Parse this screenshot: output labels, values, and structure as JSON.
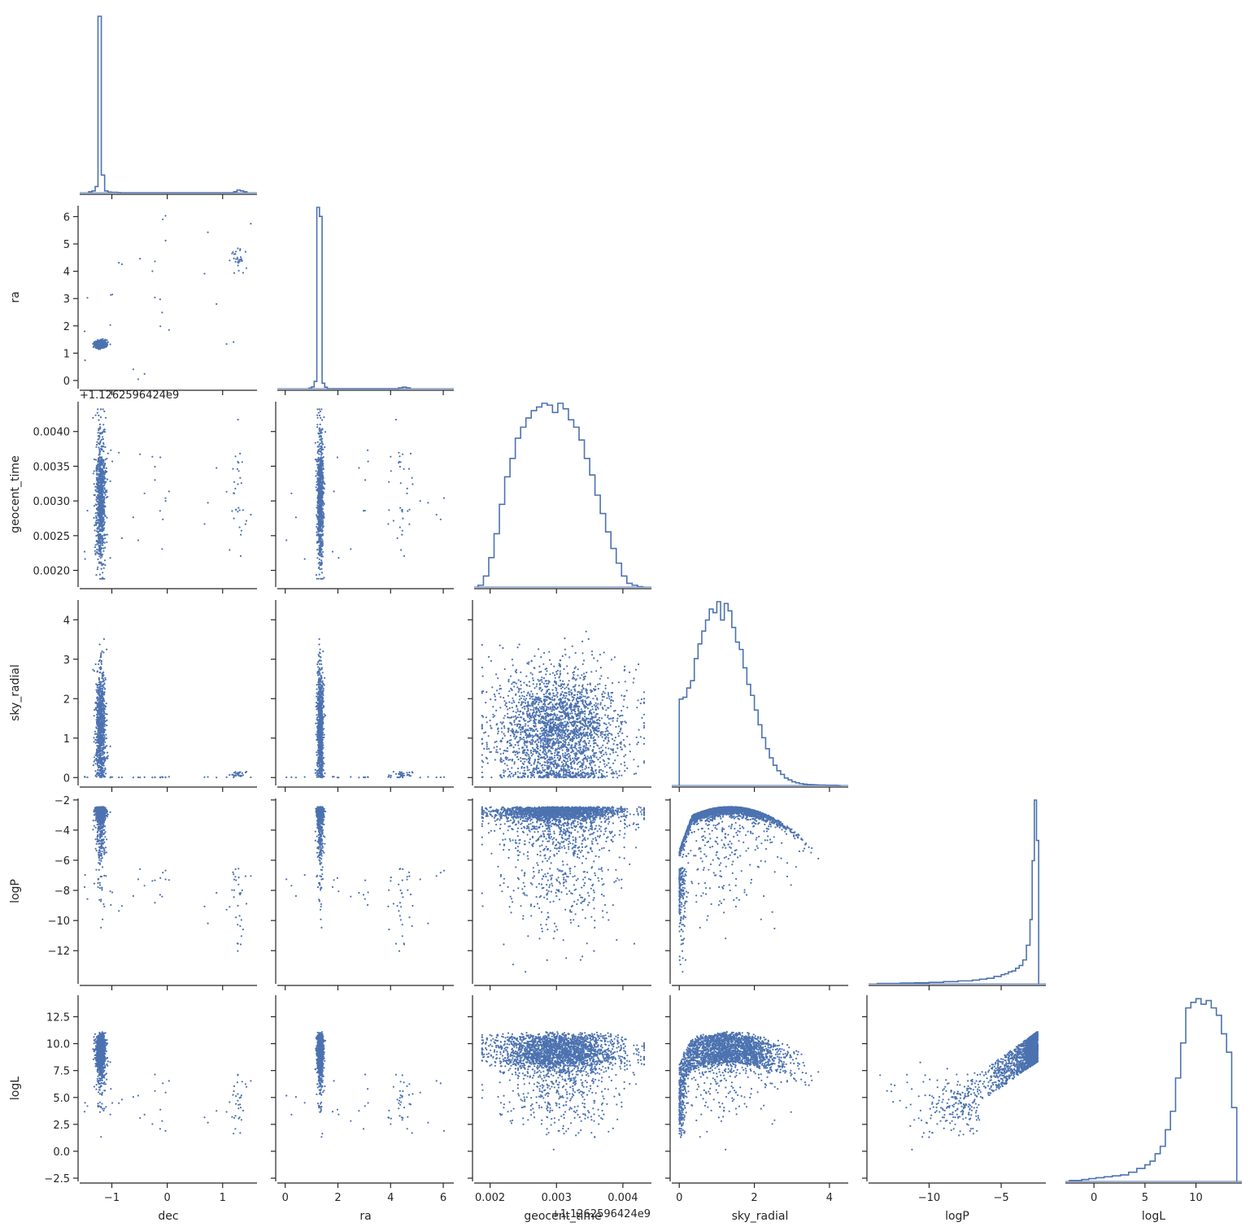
{
  "colors": {
    "series": "#4c72b0",
    "axis": "#262626",
    "background": "#ffffff"
  },
  "chart_data": {
    "type": "scatter",
    "layout": "corner-plot",
    "grid": false,
    "variables": [
      "dec",
      "ra",
      "geocent_time",
      "sky_radial",
      "logP",
      "logL"
    ],
    "offset_label": "+1.1262596424e9",
    "axes": {
      "dec": {
        "label": "dec",
        "lim": [
          -1.58,
          1.62
        ],
        "ticks": [
          -1,
          0,
          1
        ],
        "tick_labels": [
          "−1",
          "0",
          "1"
        ]
      },
      "ra": {
        "label": "ra",
        "lim": [
          -0.3,
          6.4
        ],
        "ticks": [
          0,
          1,
          2,
          3,
          4,
          5,
          6
        ],
        "tick_labels_y": [
          "0",
          "1",
          "2",
          "3",
          "4",
          "5",
          "6"
        ],
        "ticks_x": [
          0,
          2,
          4,
          6
        ],
        "tick_labels_x": [
          "0",
          "2",
          "4",
          "6"
        ]
      },
      "geocent_time": {
        "label": "geocent_time",
        "lim": [
          0.00176,
          0.00443
        ],
        "ticks": [
          0.002,
          0.0025,
          0.003,
          0.0035,
          0.004
        ],
        "tick_labels_y": [
          "0.0020",
          "0.0025",
          "0.0030",
          "0.0035",
          "0.0040"
        ],
        "ticks_x": [
          0.002,
          0.003,
          0.004
        ],
        "tick_labels_x": [
          "0.002",
          "0.003",
          "0.004"
        ]
      },
      "sky_radial": {
        "label": "sky_radial",
        "lim": [
          -0.2,
          4.5
        ],
        "ticks": [
          0,
          1,
          2,
          3,
          4
        ],
        "tick_labels_y": [
          "0",
          "1",
          "2",
          "3",
          "4"
        ],
        "ticks_x": [
          0,
          2,
          4
        ],
        "tick_labels_x": [
          "0",
          "2",
          "4"
        ]
      },
      "logP": {
        "label": "logP",
        "lim": [
          -14.2,
          -1.9
        ],
        "ticks": [
          -12,
          -10,
          -8,
          -6,
          -4,
          -2
        ],
        "tick_labels_y": [
          "−12",
          "−10",
          "−8",
          "−6",
          "−4",
          "−2"
        ],
        "ticks_x": [
          -10,
          -5
        ],
        "tick_labels_x": [
          "−10",
          "−5"
        ]
      },
      "logL": {
        "label": "logL",
        "lim": [
          -2.8,
          14.5
        ],
        "ticks": [
          -2.5,
          0,
          2.5,
          5,
          7.5,
          10,
          12.5
        ],
        "tick_labels_y": [
          "−2.5",
          "0.0",
          "2.5",
          "5.0",
          "7.5",
          "10.0",
          "12.5"
        ],
        "ticks_x": [
          0,
          5,
          10
        ],
        "tick_labels_x": [
          "0",
          "5",
          "10"
        ]
      }
    },
    "histograms": {
      "dec": {
        "bins": [
          -1.42,
          -1.36,
          -1.3,
          -1.25,
          -1.19,
          -1.13,
          -1.07,
          -1.01,
          -0.96,
          -0.9,
          -0.84,
          1.2,
          1.26,
          1.32,
          1.38,
          1.44
        ],
        "counts": [
          0.005,
          0.01,
          0.035,
          1.0,
          0.1,
          0.01,
          0.004,
          0.002,
          0.002,
          0.001,
          0,
          0.006,
          0.015,
          0.01,
          0.005,
          0
        ]
      },
      "ra": {
        "bins": [
          0.9,
          1.0,
          1.1,
          1.2,
          1.3,
          1.4,
          1.5,
          1.6,
          4.3,
          4.45,
          4.6,
          4.75
        ],
        "counts": [
          0.003,
          0.01,
          0.04,
          1.0,
          0.95,
          0.03,
          0.008,
          0,
          0.004,
          0.008,
          0.004,
          0
        ]
      },
      "geocent_time": {
        "bins": [
          0.00182,
          0.0019,
          0.00198,
          0.00206,
          0.00214,
          0.00222,
          0.0023,
          0.00238,
          0.00246,
          0.00254,
          0.00262,
          0.0027,
          0.00278,
          0.00286,
          0.00294,
          0.00302,
          0.0031,
          0.00318,
          0.00326,
          0.00334,
          0.00342,
          0.0035,
          0.00358,
          0.00366,
          0.00374,
          0.00382,
          0.0039,
          0.00398,
          0.00406,
          0.00414,
          0.00422,
          0.0043
        ],
        "counts": [
          0.01,
          0.06,
          0.16,
          0.29,
          0.45,
          0.6,
          0.7,
          0.81,
          0.87,
          0.92,
          0.96,
          0.98,
          1.0,
          0.99,
          0.95,
          1.0,
          0.97,
          0.91,
          0.87,
          0.8,
          0.7,
          0.61,
          0.5,
          0.4,
          0.3,
          0.21,
          0.13,
          0.06,
          0.02,
          0.01,
          0.002,
          0
        ]
      },
      "sky_radial": {
        "bins": [
          0,
          0.1,
          0.2,
          0.3,
          0.4,
          0.5,
          0.6,
          0.7,
          0.8,
          0.9,
          1.0,
          1.1,
          1.2,
          1.3,
          1.4,
          1.5,
          1.6,
          1.7,
          1.8,
          1.9,
          2.0,
          2.1,
          2.2,
          2.3,
          2.4,
          2.5,
          2.6,
          2.7,
          2.8,
          2.9,
          3.0,
          3.1,
          3.2,
          3.3,
          3.4,
          3.5,
          3.6,
          3.7,
          3.8,
          3.9,
          4.0,
          4.1,
          4.2,
          4.3
        ],
        "counts": [
          0.47,
          0.48,
          0.53,
          0.57,
          0.69,
          0.77,
          0.84,
          0.9,
          0.96,
          0.94,
          1.0,
          0.9,
          0.99,
          0.95,
          0.86,
          0.78,
          0.74,
          0.64,
          0.55,
          0.49,
          0.41,
          0.33,
          0.26,
          0.2,
          0.15,
          0.11,
          0.08,
          0.06,
          0.04,
          0.03,
          0.02,
          0.014,
          0.01,
          0.007,
          0.005,
          0.004,
          0.003,
          0.002,
          0.002,
          0.001,
          0.001,
          0.001,
          0
        ]
      },
      "logP": {
        "bins": [
          -13.6,
          -12.0,
          -11.0,
          -10.0,
          -9.0,
          -8.0,
          -7.0,
          -6.5,
          -6.0,
          -5.5,
          -5.0,
          -4.75,
          -4.5,
          -4.25,
          -4.0,
          -3.75,
          -3.5,
          -3.25,
          -3.0,
          -2.85,
          -2.7,
          -2.55,
          -2.4
        ],
        "counts": [
          0.002,
          0.004,
          0.006,
          0.008,
          0.012,
          0.016,
          0.02,
          0.025,
          0.03,
          0.04,
          0.05,
          0.055,
          0.065,
          0.07,
          0.085,
          0.1,
          0.13,
          0.21,
          0.35,
          0.67,
          1.0,
          0.78,
          0
        ]
      },
      "logL": {
        "bins": [
          -2.4,
          -1.2,
          -0.5,
          0.2,
          1.0,
          1.8,
          2.6,
          3.4,
          4.2,
          5.0,
          5.5,
          6.0,
          6.5,
          7.0,
          7.5,
          8.0,
          8.5,
          9.0,
          9.5,
          10.0,
          10.5,
          11.0,
          11.5,
          12.0,
          12.5,
          13.0,
          13.5,
          14.0
        ],
        "counts": [
          0.005,
          0.01,
          0.015,
          0.02,
          0.025,
          0.03,
          0.035,
          0.05,
          0.07,
          0.09,
          0.11,
          0.15,
          0.19,
          0.28,
          0.38,
          0.56,
          0.75,
          0.94,
          0.97,
          0.99,
          0.96,
          0.98,
          0.94,
          0.9,
          0.8,
          0.7,
          0.4,
          0
        ]
      }
    },
    "scatter_density": "dense clouds of small points, coarsely approximated"
  }
}
